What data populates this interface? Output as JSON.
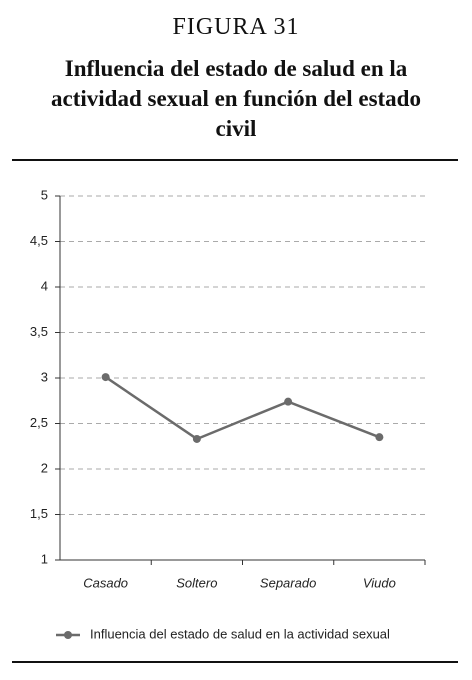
{
  "chart_data": {
    "type": "line",
    "figure_label": "FIGURA 31",
    "title": "Influencia del estado de salud en la actividad sexual en función del estado civil",
    "categories": [
      "Casado",
      "Soltero",
      "Separado",
      "Viudo"
    ],
    "series": [
      {
        "name": "Influencia del estado de salud en la actividad sexual",
        "color": "#6b6b6b",
        "values": [
          3.01,
          2.33,
          2.74,
          2.35
        ]
      }
    ],
    "ylim": [
      1,
      5
    ],
    "yticks": [
      1,
      {
        "value": 1.5,
        "label": "1,5"
      },
      2,
      {
        "value": 2.5,
        "label": "2,5"
      },
      3,
      {
        "value": 3.5,
        "label": "3,5"
      },
      4,
      {
        "value": 4.5,
        "label": "4,5"
      },
      5
    ],
    "grid": true,
    "legend": "bottom"
  }
}
